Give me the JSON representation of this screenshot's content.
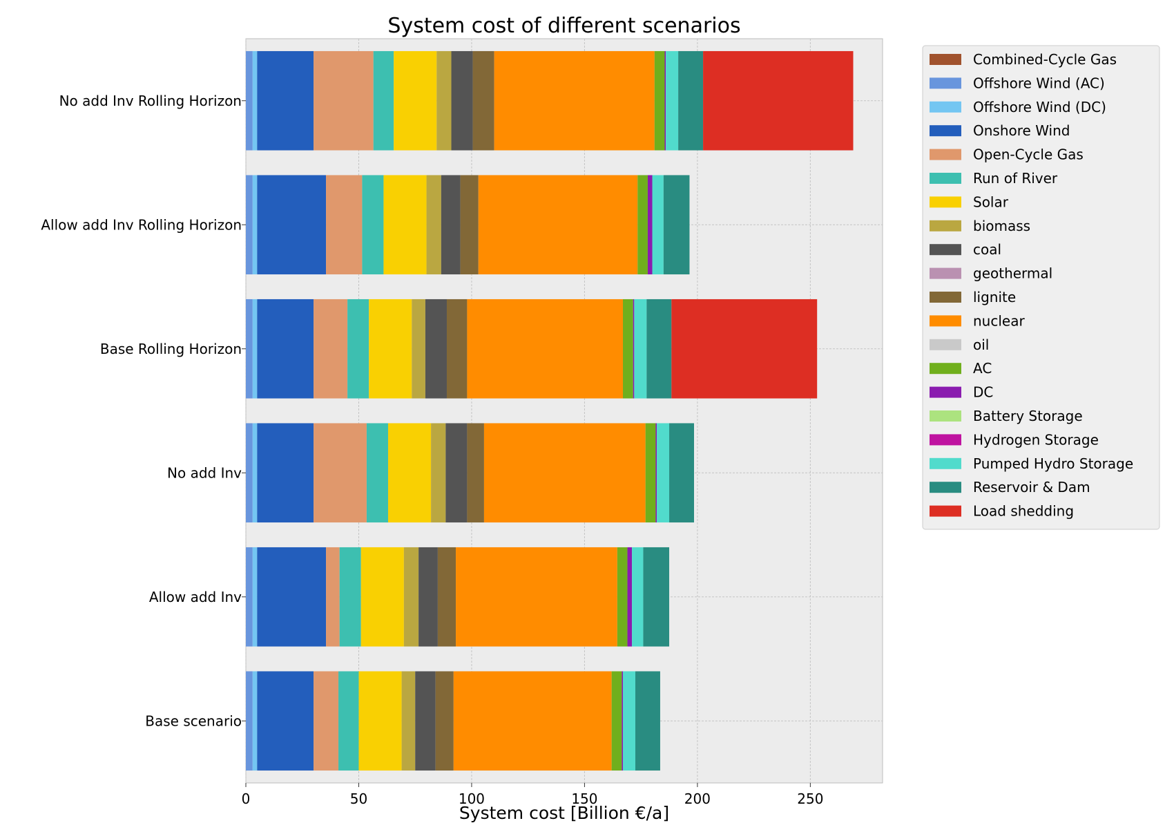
{
  "chart_data": {
    "type": "bar",
    "orientation": "horizontal",
    "stacked": true,
    "title": "System cost of different scenarios",
    "xlabel": "System cost [Billion €/a]",
    "ylabel": "",
    "xlim": [
      0,
      282
    ],
    "xticks": [
      0,
      50,
      100,
      150,
      200,
      250
    ],
    "grid": true,
    "legend_position": "outside-right-top",
    "categories": [
      "No add Inv Rolling Horizon",
      "Allow add Inv Rolling Horizon",
      "Base Rolling Horizon",
      "No add Inv",
      "Allow add Inv",
      "Base scenario"
    ],
    "series": [
      {
        "name": "Combined-Cycle Gas",
        "color": "#A0522D",
        "values": [
          0,
          0,
          0,
          0,
          0,
          0
        ]
      },
      {
        "name": "Offshore Wind (AC)",
        "color": "#6895DD",
        "values": [
          3,
          3,
          3,
          3,
          3,
          3
        ]
      },
      {
        "name": "Offshore Wind (DC)",
        "color": "#74C6F2",
        "values": [
          2,
          2,
          2,
          2,
          2,
          2
        ]
      },
      {
        "name": "Onshore Wind",
        "color": "#235EBC",
        "values": [
          25,
          30.5,
          25,
          25,
          30.5,
          25
        ]
      },
      {
        "name": "Open-Cycle Gas",
        "color": "#E0986C",
        "values": [
          26.5,
          16,
          15,
          23.5,
          6,
          11
        ]
      },
      {
        "name": "Run of River",
        "color": "#3DBFB0",
        "values": [
          9,
          9.5,
          9.5,
          9.5,
          9.5,
          9
        ]
      },
      {
        "name": "Solar",
        "color": "#F9D002",
        "values": [
          19,
          19,
          19,
          19,
          19,
          19
        ]
      },
      {
        "name": "biomass",
        "color": "#BAA741",
        "values": [
          6.5,
          6.5,
          6,
          6.5,
          6.5,
          6
        ]
      },
      {
        "name": "coal",
        "color": "#545454",
        "values": [
          9.5,
          8.5,
          9.5,
          9.5,
          8.5,
          9
        ]
      },
      {
        "name": "geothermal",
        "color": "#BA91B1",
        "values": [
          0,
          0,
          0,
          0,
          0,
          0
        ]
      },
      {
        "name": "lignite",
        "color": "#826837",
        "values": [
          9.5,
          8,
          9,
          7.5,
          8,
          8
        ]
      },
      {
        "name": "nuclear",
        "color": "#FF8C00",
        "values": [
          71,
          70.5,
          69,
          71.5,
          71.5,
          70
        ]
      },
      {
        "name": "oil",
        "color": "#C9C9C9",
        "values": [
          0,
          0,
          0,
          0,
          0,
          0
        ]
      },
      {
        "name": "AC",
        "color": "#70AF1D",
        "values": [
          4.5,
          4.5,
          4.5,
          4.5,
          4.5,
          4.5
        ]
      },
      {
        "name": "DC",
        "color": "#8A1CAF",
        "values": [
          0.5,
          2,
          0.5,
          0.5,
          2,
          0.5
        ]
      },
      {
        "name": "Battery Storage",
        "color": "#ACE37F",
        "values": [
          0,
          0,
          0,
          0,
          0,
          0
        ]
      },
      {
        "name": "Hydrogen Storage",
        "color": "#BF13A0",
        "values": [
          0,
          0,
          0,
          0,
          0,
          0
        ]
      },
      {
        "name": "Pumped Hydro Storage",
        "color": "#51DBCC",
        "values": [
          5.5,
          5,
          5.5,
          5.5,
          5,
          5.5
        ]
      },
      {
        "name": "Reservoir & Dam",
        "color": "#298C81",
        "values": [
          11,
          11.5,
          11,
          11,
          11.5,
          11
        ]
      },
      {
        "name": "Load shedding",
        "color": "#DD2E23",
        "values": [
          66.5,
          0,
          64.5,
          0,
          0,
          0
        ]
      }
    ]
  }
}
